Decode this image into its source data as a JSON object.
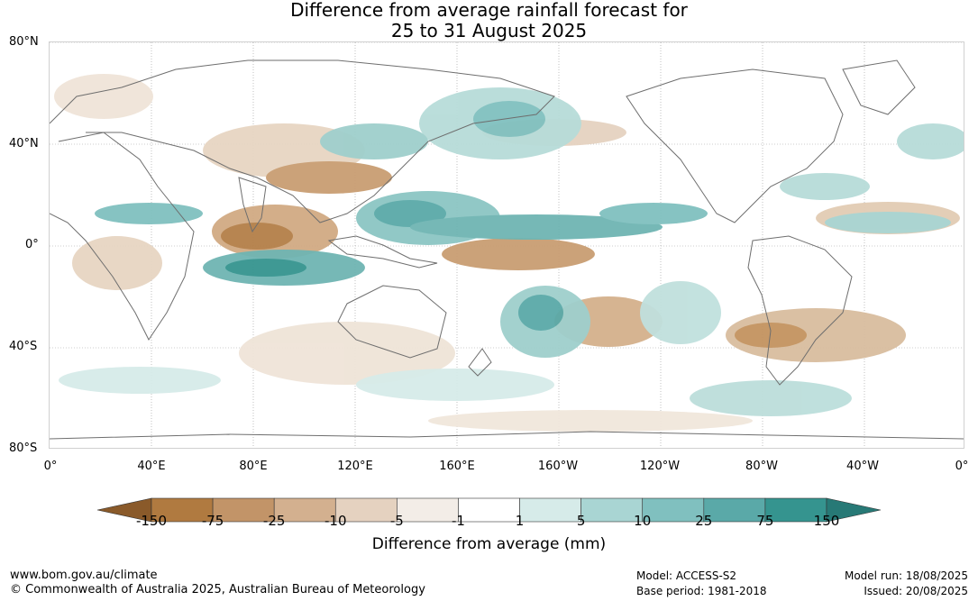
{
  "title": {
    "line1": "Difference from average rainfall forecast for",
    "line2": "25 to 31 August 2025"
  },
  "latitude_labels": [
    "80°N",
    "40°N",
    "0°",
    "40°S",
    "80°S"
  ],
  "longitude_labels": [
    "0°",
    "40°E",
    "80°E",
    "120°E",
    "160°E",
    "160°W",
    "120°W",
    "80°W",
    "40°W",
    "0°"
  ],
  "legend": {
    "title": "Difference from average (mm)",
    "ticks": [
      "-150",
      "-75",
      "-25",
      "-10",
      "-5",
      "-1",
      "1",
      "5",
      "10",
      "25",
      "75",
      "150"
    ],
    "colors": [
      "#8a5a2a",
      "#b07a40",
      "#c29468",
      "#d3b08f",
      "#e5d2c0",
      "#f3ede7",
      "#ffffff",
      "#d6ebe9",
      "#a9d5d3",
      "#80c0bf",
      "#5aa9a8",
      "#35948f",
      "#277976"
    ]
  },
  "footer": {
    "website": "www.bom.gov.au/climate",
    "copyright": "© Commonwealth of Australia 2025, Australian Bureau of Meteorology",
    "model": "Model: ACCESS-S2",
    "base_period": "Base period: 1981-2018",
    "model_run": "Model run: 18/08/2025",
    "issued": "Issued: 20/08/2025"
  }
}
